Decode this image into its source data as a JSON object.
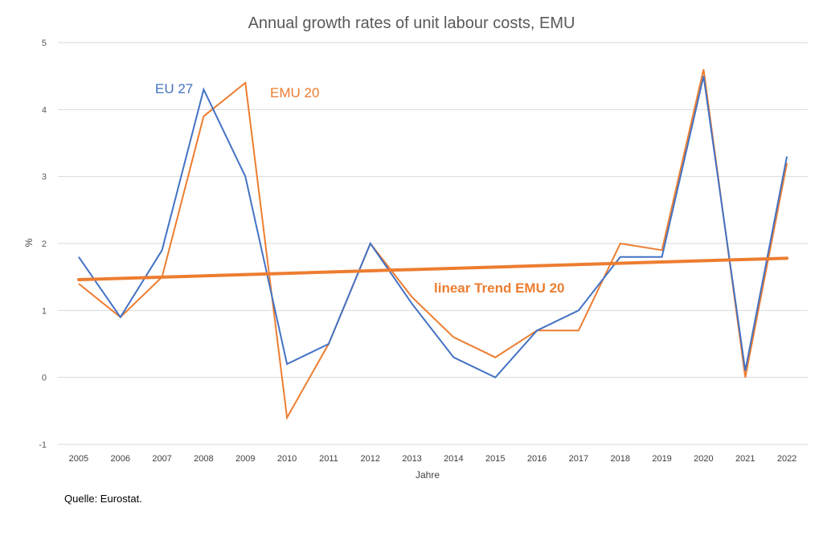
{
  "chart_data": {
    "type": "line",
    "title": "Annual growth rates of unit labour costs, EMU",
    "xlabel": "Jahre",
    "ylabel": "%",
    "ylim": [
      -1,
      5
    ],
    "yticks": [
      "-1",
      "0",
      "1",
      "2",
      "3",
      "4",
      "5"
    ],
    "grid": true,
    "categories": [
      "2005",
      "2006",
      "2007",
      "2008",
      "2009",
      "2010",
      "2011",
      "2012",
      "2013",
      "2014",
      "2015",
      "2016",
      "2017",
      "2018",
      "2019",
      "2020",
      "2021",
      "2022"
    ],
    "series": [
      {
        "name": "EU 27",
        "color": "#4472C4",
        "values": [
          1.8,
          0.9,
          1.9,
          4.3,
          3.0,
          0.2,
          0.5,
          2.0,
          1.1,
          0.3,
          0.0,
          0.7,
          1.0,
          1.8,
          1.8,
          4.5,
          0.1,
          3.3
        ]
      },
      {
        "name": "EMU 20",
        "color": "#ED7D31",
        "values": [
          1.4,
          0.9,
          1.5,
          3.9,
          4.4,
          -0.6,
          0.5,
          2.0,
          1.2,
          0.6,
          0.3,
          0.7,
          0.7,
          2.0,
          1.9,
          4.6,
          0.0,
          3.2
        ]
      }
    ],
    "trend": {
      "name": "linear Trend EMU 20",
      "color": "#ED7D31",
      "start": 1.46,
      "end": 1.78
    },
    "source": "Quelle: Eurostat."
  }
}
